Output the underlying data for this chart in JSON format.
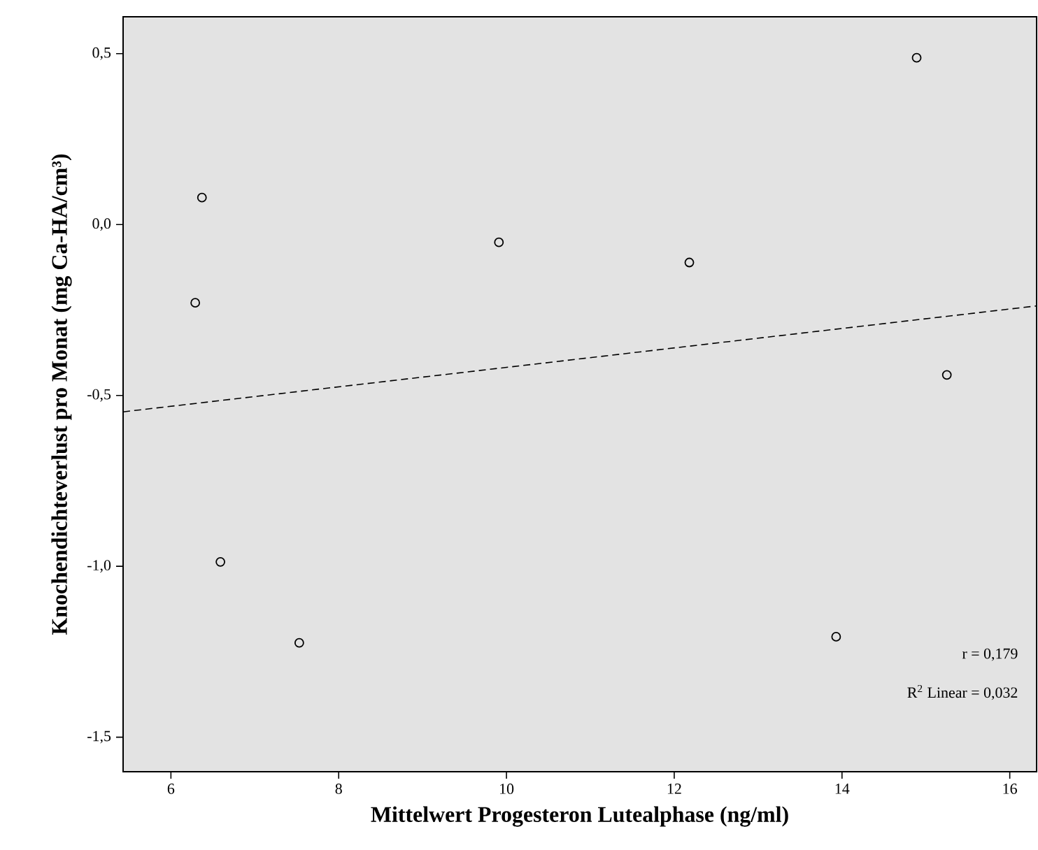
{
  "chart_data": {
    "type": "scatter",
    "xlabel": "Mittelwert Progesteron Lutealphase (ng/ml)",
    "ylabel": "Knochendichteverlust pro Monat (mg Ca-HA/cm³)",
    "xlim": [
      5.43,
      16.32
    ],
    "ylim": [
      -1.601,
      0.608
    ],
    "xticks": [
      6,
      8,
      10,
      12,
      14,
      16
    ],
    "yticks": [
      {
        "value": -1.5,
        "label": "-1,5"
      },
      {
        "value": -1.0,
        "label": "-1,0"
      },
      {
        "value": -0.5,
        "label": "-0,5"
      },
      {
        "value": 0.0,
        "label": "0,0"
      },
      {
        "value": 0.5,
        "label": "0,5"
      }
    ],
    "series": [
      {
        "marker": "circle",
        "color": "#000000",
        "x": [
          6.37,
          6.29,
          9.91,
          12.18,
          14.89,
          15.25,
          6.59,
          7.53,
          13.93
        ],
        "values": [
          0.079,
          -0.229,
          -0.052,
          -0.111,
          0.488,
          -0.44,
          -0.987,
          -1.224,
          -1.206
        ]
      },
      {
        "type": "line",
        "color": "#000000",
        "line_style": "dashed",
        "marker": "none",
        "x": [
          5.43,
          16.32
        ],
        "values": [
          -0.548,
          -0.238
        ]
      }
    ],
    "annotations": [
      "r = 0,179",
      "R$^{2}$ Linear = 0,032"
    ]
  }
}
